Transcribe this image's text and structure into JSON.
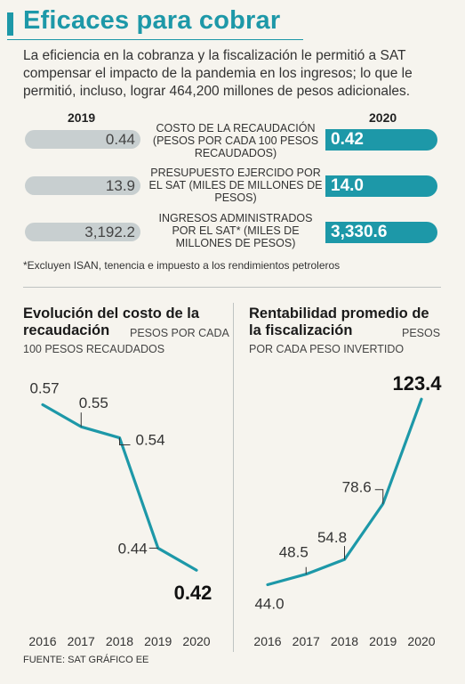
{
  "title": "Eficaces para cobrar",
  "intro": "La eficiencia en la cobranza y la fiscalización le permitió a SAT compensar el impacto de la pandemia en los ingresos; lo que le permitió, incluso, lograr 464,200 millones de pesos adicionales.",
  "comparison": {
    "year_left": "2019",
    "year_right": "2020",
    "rows": [
      {
        "label": "COSTO DE LA RECAUDACIÓN (PESOS POR CADA 100 PESOS RECAUDADOS)",
        "v2019": "0.44",
        "v2020": "0.42"
      },
      {
        "label": "PRESUPUESTO EJERCIDO POR EL SAT (MILES DE MILLONES DE PESOS)",
        "v2019": "13.9",
        "v2020": "14.0"
      },
      {
        "label": "INGRESOS ADMINISTRADOS POR EL SAT* (MILES DE MILLONES DE PESOS)",
        "v2019": "3,192.2",
        "v2020": "3,330.6"
      }
    ],
    "footnote": "*Excluyen ISAN, tenencia e impuesto a los rendimientos petroleros"
  },
  "chart_data": [
    {
      "type": "line",
      "title": "Evolución del costo de la recaudación",
      "unit": "PESOS POR CADA 100 PESOS RECAUDADOS",
      "categories": [
        "2016",
        "2017",
        "2018",
        "2019",
        "2020"
      ],
      "values": [
        0.57,
        0.55,
        0.54,
        0.44,
        0.42
      ],
      "value_labels": [
        "0.57",
        "0.55",
        "0.54",
        "0.44",
        "0.42"
      ],
      "highlight_last": true,
      "color": "#1d98a8",
      "ylim": [
        0.4,
        0.58
      ],
      "grid": false
    },
    {
      "type": "line",
      "title": "Rentabilidad promedio de la fiscalización",
      "unit": "PESOS POR CADA PESO INVERTIDO",
      "categories": [
        "2016",
        "2017",
        "2018",
        "2019",
        "2020"
      ],
      "values": [
        44.0,
        48.5,
        54.8,
        78.6,
        123.4
      ],
      "value_labels": [
        "44.0",
        "48.5",
        "54.8",
        "78.6",
        "123.4"
      ],
      "highlight_last": true,
      "color": "#1d98a8",
      "ylim": [
        40,
        125
      ],
      "grid": false
    }
  ],
  "source": "FUENTE: SAT GRÁFICO EE"
}
